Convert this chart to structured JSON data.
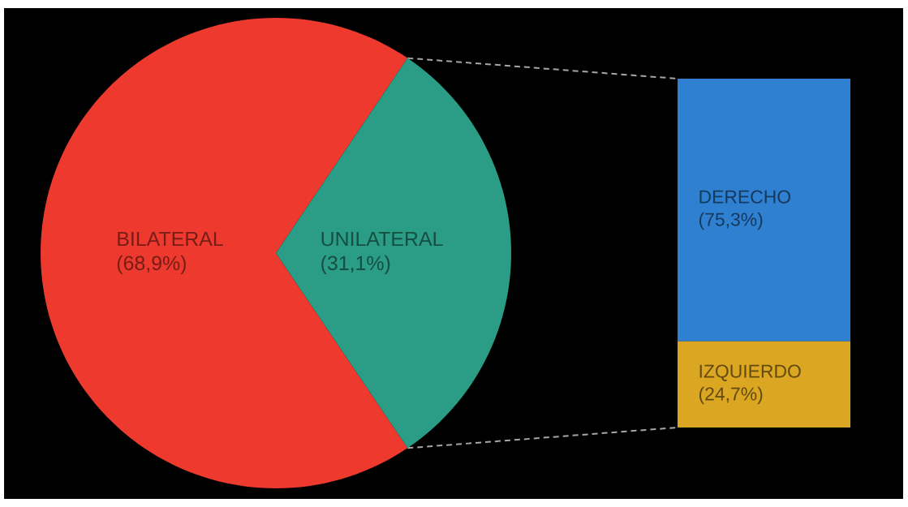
{
  "chart_data": [
    {
      "type": "pie",
      "categories": [
        "BILATERAL",
        "UNILATERAL"
      ],
      "values": [
        68.9,
        31.1
      ],
      "colors": [
        "#ee3a2e",
        "#2b9c85"
      ],
      "value_labels": [
        "(68,9%)",
        "(31,1%)"
      ]
    },
    {
      "type": "bar",
      "stacked": true,
      "categories": [
        null
      ],
      "series": [
        {
          "name": "IZQUIERDO",
          "color": "#dba622",
          "values": [
            24.7
          ],
          "value_labels": [
            "(24,7%)"
          ]
        },
        {
          "name": "DERECHO",
          "color": "#2f80d1",
          "values": [
            75.3
          ],
          "value_labels": [
            "(75,3%)"
          ]
        }
      ]
    }
  ]
}
